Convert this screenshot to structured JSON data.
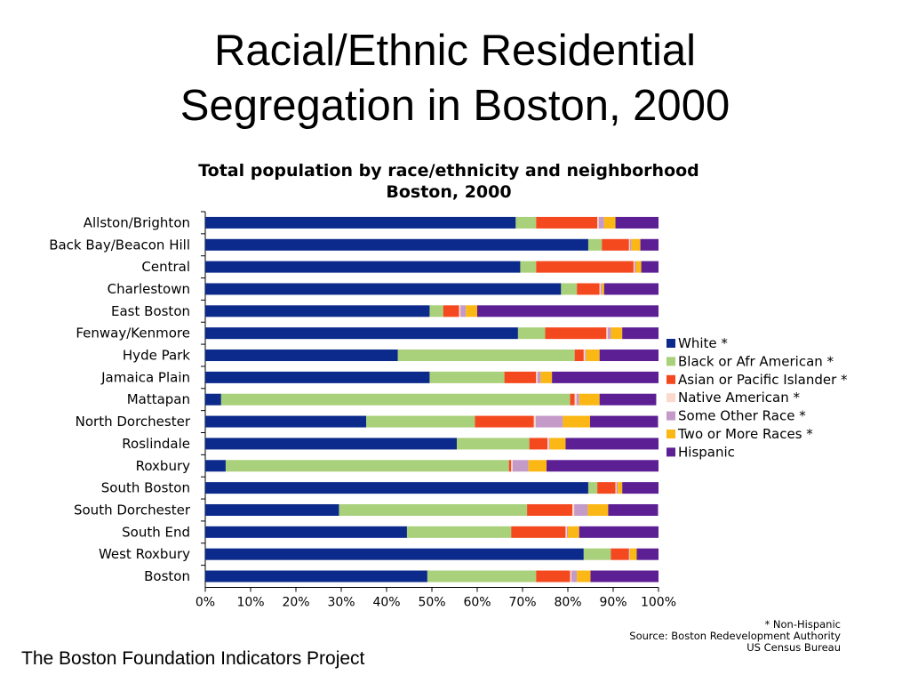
{
  "slide": {
    "title_line1": "Racial/Ethnic Residential",
    "title_line2": "Segregation in Boston, 2000",
    "footer": "The Boston Foundation Indicators Project"
  },
  "notes": {
    "line1": "* Non-Hispanic",
    "line2": "Source: Boston Redevelopment Authority",
    "line3": "US Census Bureau"
  },
  "chart_data": {
    "type": "bar",
    "orientation": "horizontal",
    "stacked": "percent",
    "title_line1": "Total population by race/ethnicity and neighborhood",
    "title_line2": "Boston, 2000",
    "xlabel": "",
    "ylabel": "",
    "xlim": [
      0,
      100
    ],
    "x_ticks": [
      "0%",
      "10%",
      "20%",
      "30%",
      "40%",
      "50%",
      "60%",
      "70%",
      "80%",
      "90%",
      "100%"
    ],
    "grid": false,
    "legend_position": "right",
    "categories": [
      "Allston/Brighton",
      "Back Bay/Beacon Hill",
      "Central",
      "Charlestown",
      "East Boston",
      "Fenway/Kenmore",
      "Hyde Park",
      "Jamaica Plain",
      "Mattapan",
      "North Dorchester",
      "Roslindale",
      "Roxbury",
      "South Boston",
      "South Dorchester",
      "South End",
      "West Roxbury",
      "Boston"
    ],
    "series": [
      {
        "name": "White *",
        "color": "#0b2a8c",
        "values": [
          68.5,
          84.5,
          69.5,
          78.5,
          49.5,
          69,
          42.5,
          49.5,
          3.5,
          35.5,
          55.5,
          4.5,
          84.5,
          29.5,
          44.5,
          83.5,
          49
        ]
      },
      {
        "name": "Black or Afr American *",
        "color": "#a9d07a",
        "values": [
          4.5,
          3,
          3.5,
          3.5,
          3,
          6,
          39,
          16.5,
          77,
          24,
          16,
          62.5,
          2,
          41.5,
          23,
          6,
          24
        ]
      },
      {
        "name": "Asian or Pacific Islander *",
        "color": "#f4491f",
        "values": [
          13.5,
          6,
          21.5,
          5,
          3.5,
          13.5,
          2,
          7,
          1,
          13,
          4,
          0.5,
          4,
          10,
          12,
          4,
          7.5
        ]
      },
      {
        "name": "Native American *",
        "color": "#fbd9cc",
        "values": [
          0.3,
          0.2,
          0.2,
          0.2,
          0.3,
          0.3,
          0.3,
          0.3,
          0.4,
          0.4,
          0.3,
          0.3,
          0.2,
          0.4,
          0.3,
          0.1,
          0.3
        ]
      },
      {
        "name": "Some Other Race *",
        "color": "#c49ac8",
        "values": [
          1.2,
          0.3,
          0.3,
          0.3,
          1.2,
          0.7,
          0.2,
          0.7,
          0.6,
          6,
          0.2,
          3.5,
          0.3,
          3,
          0.2,
          0.1,
          1.2
        ]
      },
      {
        "name": "Two or More Races *",
        "color": "#fbb713",
        "values": [
          2.5,
          2,
          1.2,
          0.5,
          2.5,
          2.5,
          3,
          2.5,
          4.5,
          6,
          3.5,
          4,
          1,
          4.5,
          2.5,
          1.5,
          3
        ]
      },
      {
        "name": "Hispanic",
        "color": "#5d1f94",
        "values": [
          9.5,
          4,
          3.8,
          12,
          40,
          8,
          13,
          23.5,
          12.5,
          15,
          20.5,
          24.7,
          8,
          11,
          17.5,
          4.8,
          15
        ]
      }
    ]
  }
}
